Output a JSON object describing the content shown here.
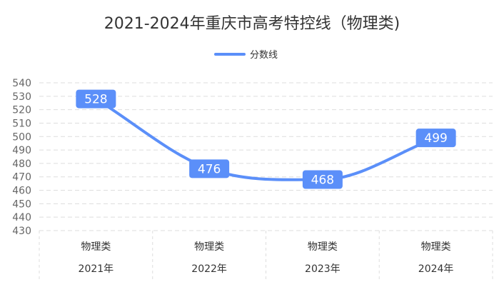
{
  "chart_data": {
    "type": "line",
    "title": "2021-2024年重庆市高考特控线（物理类)",
    "categories": [
      "2021年",
      "2022年",
      "2023年",
      "2024年"
    ],
    "category_group": "物理类",
    "series": [
      {
        "name": "分数线",
        "values": [
          528,
          476,
          468,
          499
        ]
      }
    ],
    "ylim": [
      430,
      540
    ],
    "yticks": [
      430,
      440,
      450,
      460,
      470,
      480,
      490,
      500,
      510,
      520,
      530,
      540
    ],
    "grid": true,
    "smooth": true,
    "data_labels": true,
    "legend_position": "top-center",
    "xlabel": "",
    "ylabel": ""
  },
  "colors": {
    "series": "#5b8ff9",
    "label_bg": "#5b8ff9",
    "grid": "#dddddd"
  }
}
